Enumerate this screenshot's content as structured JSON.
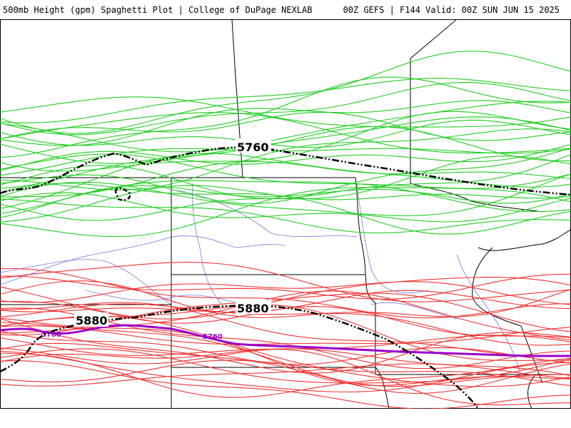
{
  "header": {
    "title": "500mb Height (gpm) Spaghetti Plot | College of DuPage NEXLAB",
    "run_info": "00Z GEFS | F144 Valid: 00Z SUN JUN 15 2025"
  },
  "contours": {
    "mean_5760_label": "5760",
    "mean_5880_label": "5880",
    "climo_5760_label_1": "5760",
    "climo_5760_label_2": "5760"
  },
  "colors": {
    "member_5760": "#22cc22",
    "member_5880": "#ee3333",
    "ensemble_mean": "#000000",
    "climatology": "#9900cc",
    "state_borders": "#000000",
    "rivers": "#7777dd",
    "background": "#ffffff"
  }
}
